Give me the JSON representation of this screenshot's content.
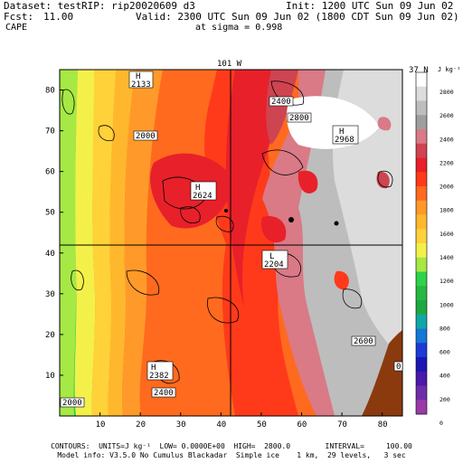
{
  "header": {
    "dataset": "Dataset: test",
    "rip": "RIP: rip20020609 d3",
    "init": "Init: 1200 UTC Sun 09 Jun 02",
    "fcst_label": "Fcst:",
    "fcst_value": "11.00",
    "valid": "Valid: 2300 UTC Sun 09 Jun 02 (1800 CDT Sun 09 Jun 02)",
    "field": "CAPE",
    "sigma": "at sigma = 0.998"
  },
  "map": {
    "top_label": "101 W",
    "right_label": "37 N",
    "x_ticks": [
      "10",
      "20",
      "30",
      "40",
      "50",
      "60",
      "70",
      "80"
    ],
    "y_ticks": [
      "10",
      "20",
      "30",
      "40",
      "50",
      "60",
      "70",
      "80"
    ],
    "annotations": [
      {
        "id": "h-2133",
        "kind": "H",
        "text": "2133"
      },
      {
        "id": "l-2000",
        "kind": "box",
        "text": "2000"
      },
      {
        "id": "l-2400a",
        "kind": "box",
        "text": "2400"
      },
      {
        "id": "l-2800a",
        "kind": "box",
        "text": "2800"
      },
      {
        "id": "h-2968",
        "kind": "H",
        "text": "2968"
      },
      {
        "id": "h-2624",
        "kind": "H",
        "text": "2624"
      },
      {
        "id": "l-2204",
        "kind": "L",
        "text": "2204"
      },
      {
        "id": "l-2600",
        "kind": "box",
        "text": "2600"
      },
      {
        "id": "h-2382",
        "kind": "H",
        "text": "2382"
      },
      {
        "id": "l-2400b",
        "kind": "box",
        "text": "2400"
      },
      {
        "id": "l-2000b",
        "kind": "box",
        "text": "2000"
      },
      {
        "id": "l-0",
        "kind": "box",
        "text": "0"
      }
    ]
  },
  "colorbar": {
    "units": "J kg⁻¹",
    "labels": [
      "2800",
      "2600",
      "2400",
      "2200",
      "2000",
      "1800",
      "1600",
      "1400",
      "1200",
      "1000",
      "800",
      "600",
      "400",
      "200",
      "0"
    ],
    "colors": [
      "#ffffff",
      "#dcdcdc",
      "#bdbdbd",
      "#9e9e9e",
      "#d97a86",
      "#ce4451",
      "#e8202a",
      "#ff3a1a",
      "#ff6a1f",
      "#ff9a2a",
      "#ffb82d",
      "#ffd23a",
      "#f4f04a",
      "#a6e844",
      "#2fd24a",
      "#27b843",
      "#1ea840",
      "#12a7a7",
      "#1577d6",
      "#1d3bd6",
      "#1a17b5",
      "#4a1aa8",
      "#6e2ea6",
      "#9c3aa8"
    ]
  },
  "footer": {
    "line1": "CONTOURS:  UNITS=J kg⁻¹  LOW= 0.0000E+00  HIGH=  2800.0        INTERVAL=     100.00",
    "line2": "Model info: V3.5.0 No Cumulus Blackadar  Simple ice    1 km,  29 levels,   3 sec"
  }
}
